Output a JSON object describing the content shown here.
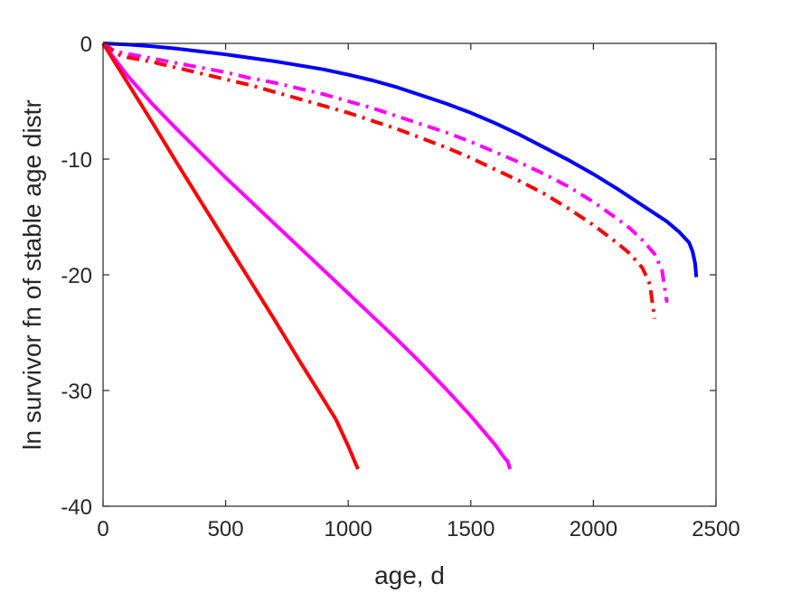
{
  "chart_data": {
    "type": "line",
    "title": "",
    "xlabel": "age, d",
    "ylabel": "ln survivor fn of stable age distr",
    "xlim": [
      0,
      2500
    ],
    "ylim": [
      -40,
      0
    ],
    "xticks": [
      0,
      500,
      1000,
      1500,
      2000,
      2500
    ],
    "yticks": [
      0,
      -10,
      -20,
      -30,
      -40
    ],
    "xtick_labels": [
      "0",
      "500",
      "1000",
      "1500",
      "2000",
      "2500"
    ],
    "ytick_labels": [
      "0",
      "-10",
      "-20",
      "-30",
      "-40"
    ],
    "grid": false,
    "legend": null,
    "series": [
      {
        "color": "#0000ff",
        "style": "solid",
        "x": [
          0,
          100,
          200,
          300,
          400,
          500,
          600,
          700,
          800,
          900,
          1000,
          1100,
          1200,
          1300,
          1400,
          1500,
          1600,
          1700,
          1800,
          1900,
          2000,
          2100,
          2200,
          2300,
          2350,
          2390,
          2405,
          2415,
          2420
        ],
        "y": [
          0,
          -0.1,
          -0.25,
          -0.45,
          -0.7,
          -0.95,
          -1.25,
          -1.55,
          -1.9,
          -2.25,
          -2.7,
          -3.2,
          -3.8,
          -4.5,
          -5.2,
          -6.0,
          -6.9,
          -7.9,
          -9.0,
          -10.1,
          -11.3,
          -12.6,
          -14.0,
          -15.4,
          -16.3,
          -17.2,
          -18.0,
          -19.0,
          -20.2
        ]
      },
      {
        "color": "#ff00ff",
        "style": "dashdot",
        "x": [
          0,
          50,
          100,
          200,
          300,
          400,
          500,
          600,
          700,
          800,
          900,
          1000,
          1100,
          1200,
          1300,
          1400,
          1500,
          1600,
          1700,
          1800,
          1900,
          2000,
          2100,
          2150,
          2200,
          2250,
          2280,
          2300
        ],
        "y": [
          0,
          -0.7,
          -0.9,
          -1.3,
          -1.7,
          -2.1,
          -2.5,
          -3.0,
          -3.4,
          -3.9,
          -4.4,
          -5.0,
          -5.6,
          -6.3,
          -7.0,
          -7.7,
          -8.5,
          -9.4,
          -10.3,
          -11.3,
          -12.4,
          -13.7,
          -15.2,
          -16.0,
          -17.0,
          -18.2,
          -19.6,
          -22.4
        ]
      },
      {
        "color": "#ff0000",
        "style": "dashdot",
        "x": [
          0,
          50,
          100,
          200,
          300,
          400,
          500,
          600,
          700,
          800,
          900,
          1000,
          1100,
          1200,
          1300,
          1400,
          1500,
          1600,
          1700,
          1800,
          1900,
          2000,
          2100,
          2150,
          2200,
          2230,
          2250
        ],
        "y": [
          0,
          -0.9,
          -1.2,
          -1.6,
          -2.1,
          -2.6,
          -3.1,
          -3.6,
          -4.2,
          -4.8,
          -5.4,
          -6.0,
          -6.7,
          -7.4,
          -8.2,
          -9.0,
          -9.9,
          -10.9,
          -11.9,
          -13.0,
          -14.3,
          -15.7,
          -17.3,
          -18.2,
          -19.4,
          -20.8,
          -23.8
        ]
      },
      {
        "color": "#ff00ff",
        "style": "solid",
        "x": [
          0,
          100,
          200,
          300,
          400,
          500,
          600,
          700,
          800,
          900,
          1000,
          1100,
          1200,
          1300,
          1400,
          1500,
          1600,
          1620,
          1640,
          1650,
          1660
        ],
        "y": [
          0,
          -2.8,
          -5.2,
          -7.4,
          -9.5,
          -11.6,
          -13.6,
          -15.6,
          -17.6,
          -19.6,
          -21.6,
          -23.6,
          -25.6,
          -27.7,
          -29.9,
          -32.2,
          -34.7,
          -35.3,
          -35.9,
          -36.1,
          -36.8
        ]
      },
      {
        "color": "#ff0000",
        "style": "solid",
        "x": [
          0,
          100,
          200,
          300,
          400,
          500,
          600,
          700,
          800,
          900,
          950,
          1000,
          1020,
          1030,
          1040
        ],
        "y": [
          0,
          -3.4,
          -6.8,
          -10.3,
          -13.7,
          -17.1,
          -20.5,
          -23.9,
          -27.4,
          -30.8,
          -32.5,
          -34.8,
          -35.8,
          -36.3,
          -36.8
        ]
      }
    ]
  }
}
